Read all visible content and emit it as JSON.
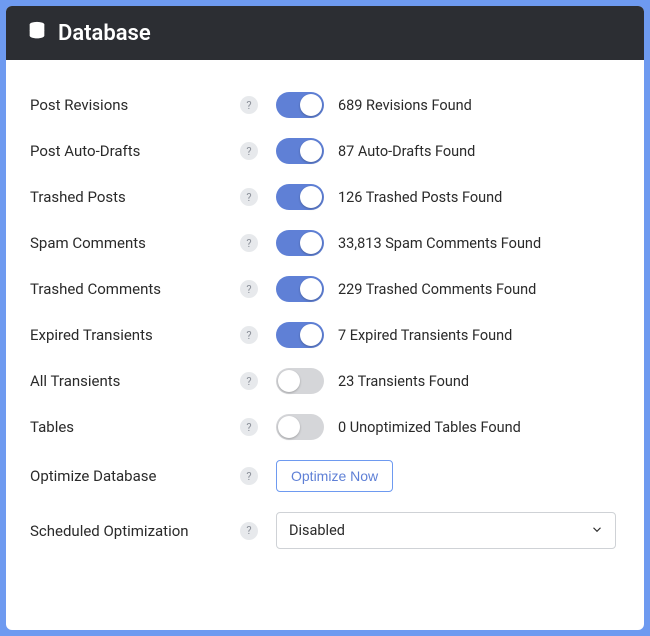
{
  "header": {
    "title": "Database"
  },
  "colors": {
    "toggle_on": "#5f80d6",
    "toggle_off": "#d5d6d9",
    "border_accent": "#6e9af0",
    "header_bg": "#2c2e33"
  },
  "rows": [
    {
      "key": "post-revisions",
      "label": "Post Revisions",
      "toggle": true,
      "status": "689 Revisions Found"
    },
    {
      "key": "post-auto-drafts",
      "label": "Post Auto-Drafts",
      "toggle": true,
      "status": "87 Auto-Drafts Found"
    },
    {
      "key": "trashed-posts",
      "label": "Trashed Posts",
      "toggle": true,
      "status": "126 Trashed Posts Found"
    },
    {
      "key": "spam-comments",
      "label": "Spam Comments",
      "toggle": true,
      "status": "33,813 Spam Comments Found"
    },
    {
      "key": "trashed-comments",
      "label": "Trashed Comments",
      "toggle": true,
      "status": "229 Trashed Comments Found"
    },
    {
      "key": "expired-transients",
      "label": "Expired Transients",
      "toggle": true,
      "status": "7 Expired Transients Found"
    },
    {
      "key": "all-transients",
      "label": "All Transients",
      "toggle": false,
      "status": "23 Transients Found"
    },
    {
      "key": "tables",
      "label": "Tables",
      "toggle": false,
      "status": "0 Unoptimized Tables Found"
    }
  ],
  "optimize": {
    "label": "Optimize Database",
    "button": "Optimize Now"
  },
  "scheduled": {
    "label": "Scheduled Optimization",
    "value": "Disabled"
  },
  "help": "?"
}
